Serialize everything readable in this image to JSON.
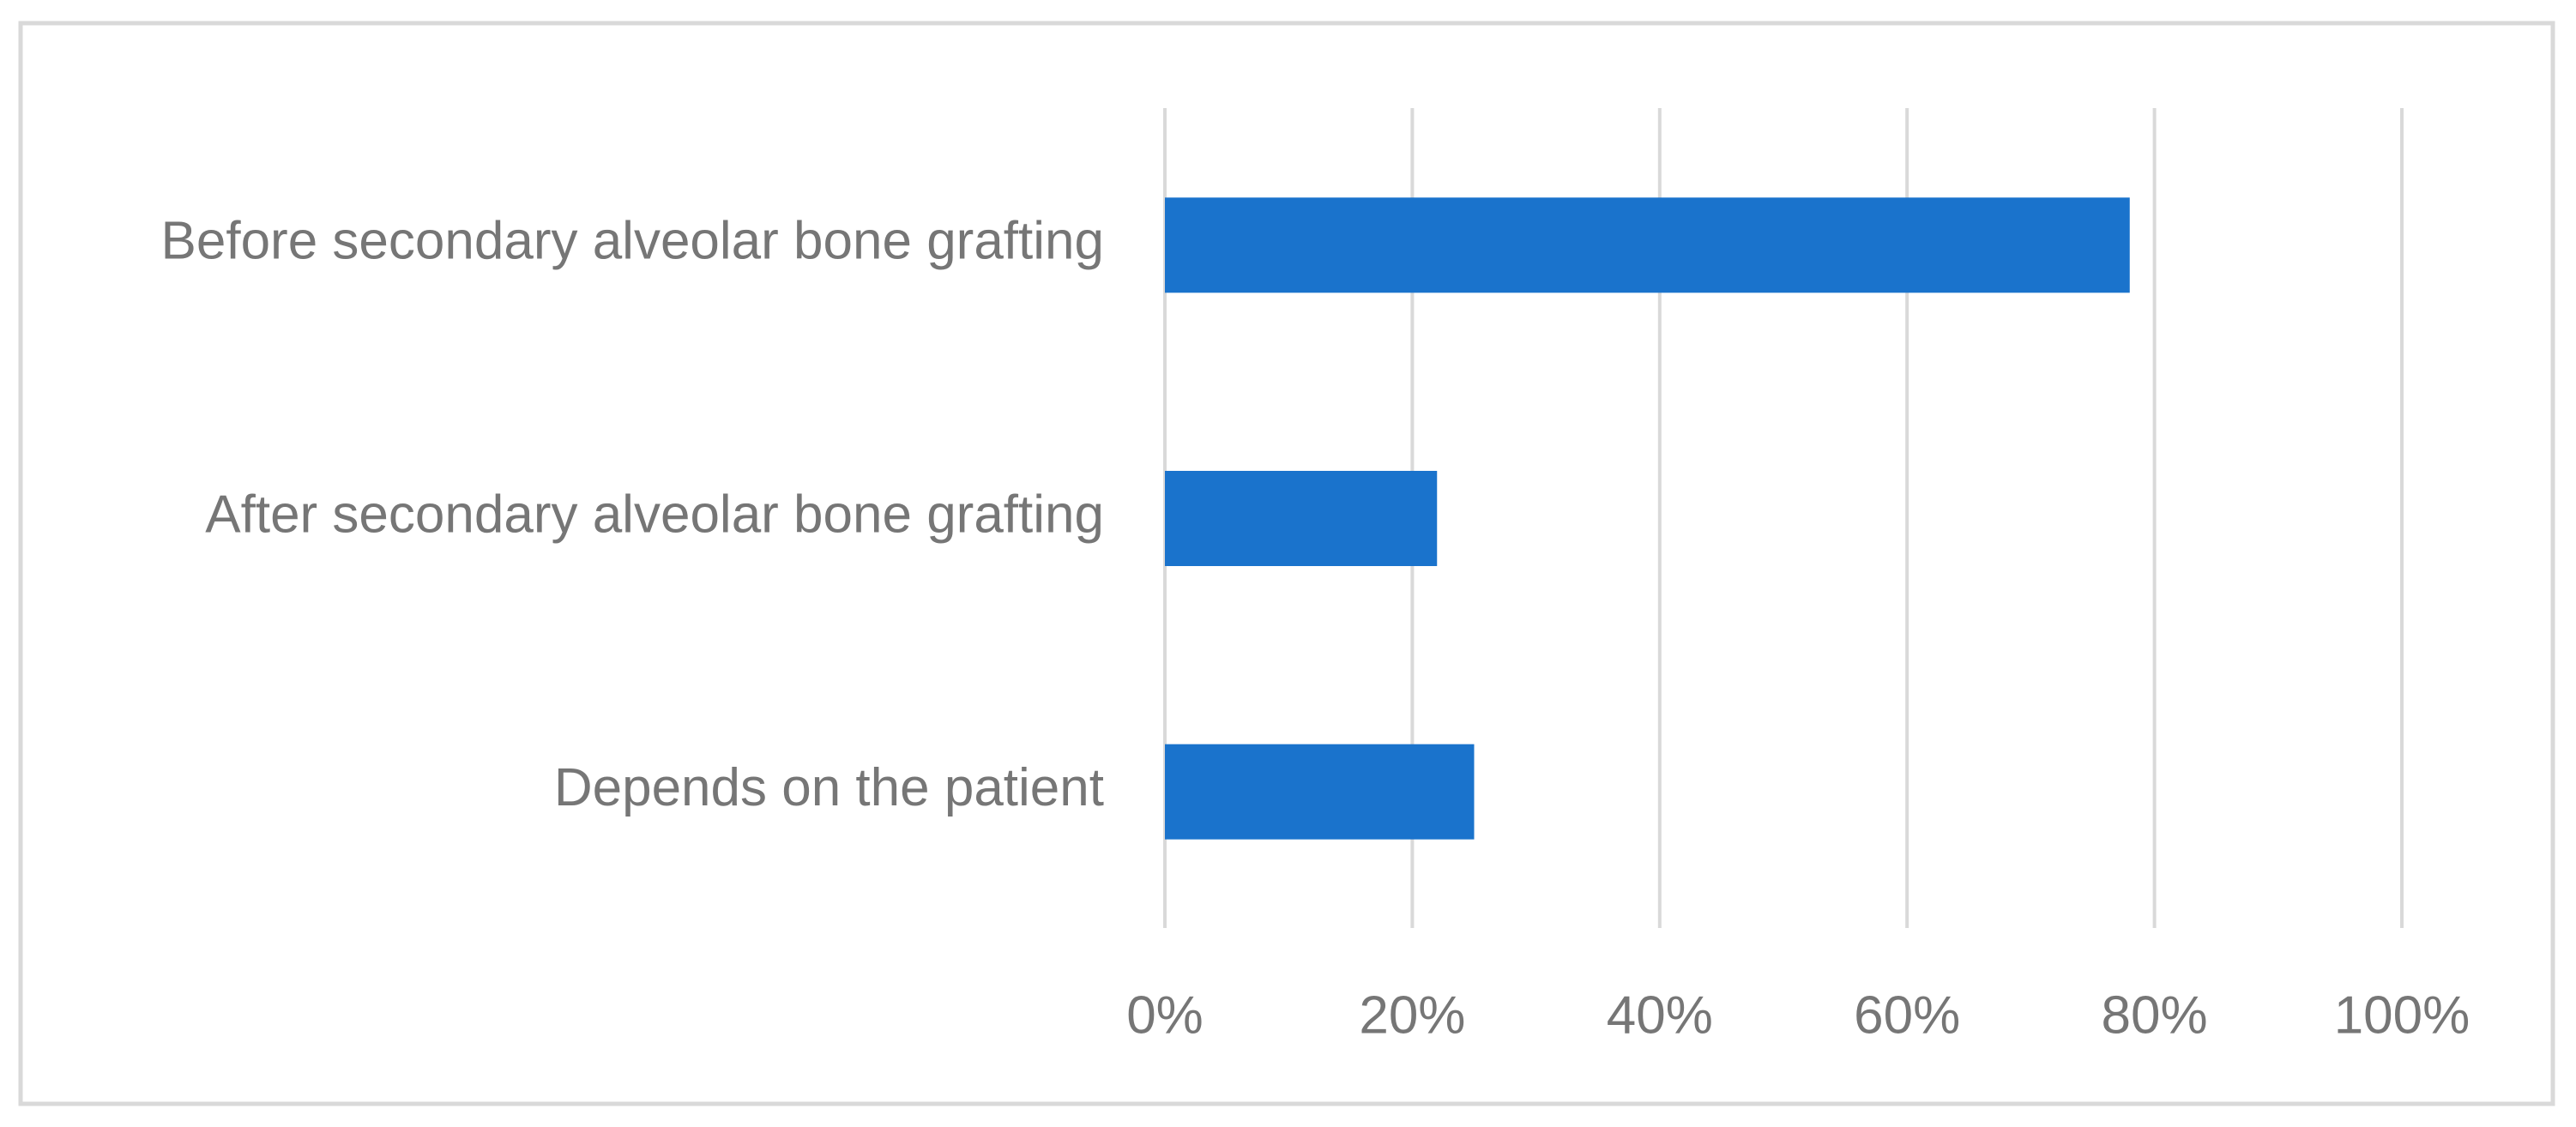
{
  "chart_data": {
    "type": "barh",
    "categories": [
      "Before secondary alveolar bone grafting",
      "After secondary alveolar bone grafting",
      "Depends on the patient"
    ],
    "values": [
      78,
      22,
      25
    ],
    "color": "#1a73cc",
    "xlim": [
      0,
      100
    ],
    "xticks": [
      {
        "value": 0,
        "label": "0%"
      },
      {
        "value": 20,
        "label": "20%"
      },
      {
        "value": 40,
        "label": "40%"
      },
      {
        "value": 60,
        "label": "60%"
      },
      {
        "value": 80,
        "label": "80%"
      },
      {
        "value": 100,
        "label": "100%"
      }
    ],
    "grid": true
  }
}
